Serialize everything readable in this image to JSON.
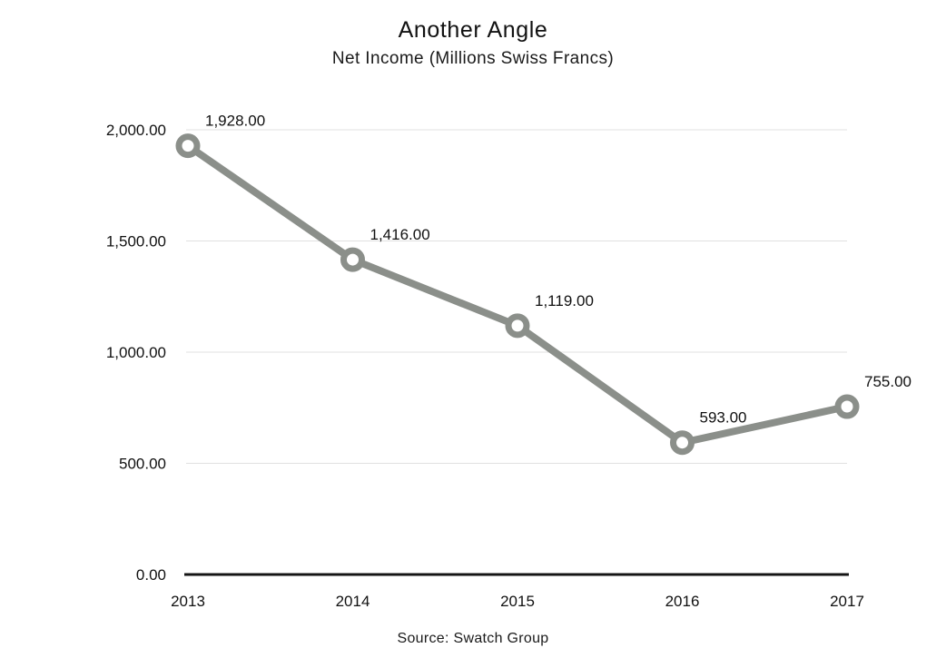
{
  "chart_data": {
    "type": "line",
    "title": "Another Angle",
    "subtitle": "Net Income (Millions Swiss Francs)",
    "source": "Source: Swatch Group",
    "categories": [
      "2013",
      "2014",
      "2015",
      "2016",
      "2017"
    ],
    "series": [
      {
        "name": "Net Income",
        "values": [
          1928,
          1416,
          1119,
          593,
          755
        ]
      }
    ],
    "value_labels": [
      "1,928.00",
      "1,416.00",
      "1,119.00",
      "593.00",
      "755.00"
    ],
    "ylim": [
      0,
      2000
    ],
    "ytick_values": [
      0,
      500,
      1000,
      1500,
      2000
    ],
    "ytick_labels": [
      "0.00",
      "500.00",
      "1,000.00",
      "1,500.00",
      "2,000.00"
    ],
    "grid": true,
    "legend": "none",
    "marker": "open-circle",
    "colors": {
      "line": "#8b8f8a",
      "marker_fill": "#ffffff",
      "grid": "#e0e0e0",
      "axis": "#151515",
      "text": "#111111"
    }
  }
}
